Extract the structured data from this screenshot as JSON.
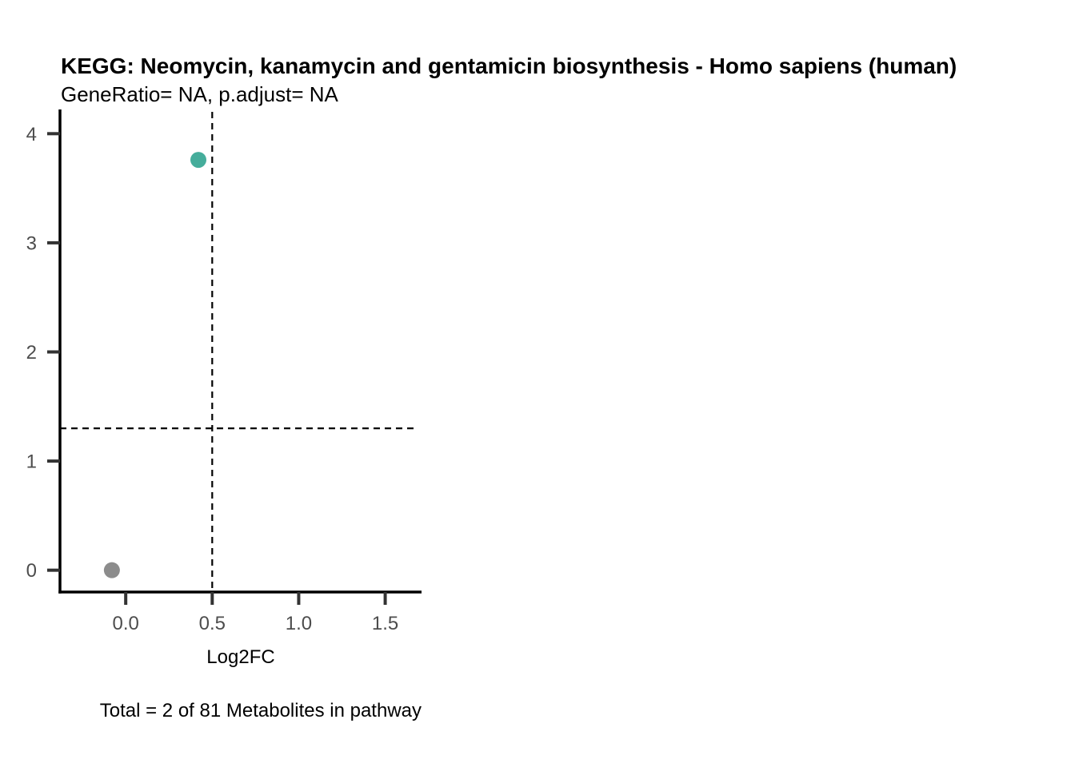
{
  "chart_data": {
    "type": "scatter",
    "title": "KEGG: Neomycin, kanamycin and gentamicin biosynthesis - Homo sapiens (human)",
    "subtitle": "GeneRatio= NA, p.adjust= NA",
    "xlabel": "Log2FC",
    "ylabel": "",
    "caption": "Total = 2 of 81 Metabolites in pathway",
    "xlim": [
      -0.38,
      1.71
    ],
    "ylim": [
      -0.2,
      4.2
    ],
    "x_ticks": [
      0.0,
      0.5,
      1.0,
      1.5
    ],
    "x_tick_labels": [
      "0.0",
      "0.5",
      "1.0",
      "1.5"
    ],
    "y_ticks": [
      0,
      1,
      2,
      3,
      4
    ],
    "y_tick_labels": [
      "0",
      "1",
      "2",
      "3",
      "4"
    ],
    "grid": false,
    "legend": "none",
    "reference_lines": {
      "vertical_x": 0.5,
      "horizontal_y": 1.3
    },
    "points": [
      {
        "x": -0.08,
        "y": 0.0,
        "color": "#8c8c8c"
      },
      {
        "x": 0.42,
        "y": 3.76,
        "color": "#45ad9b"
      }
    ]
  }
}
